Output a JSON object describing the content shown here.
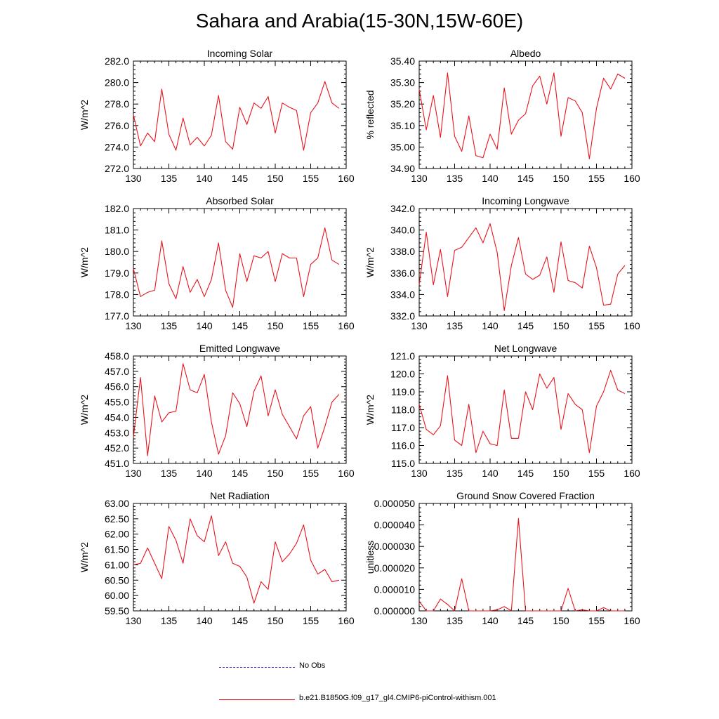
{
  "title": "Sahara and Arabia(15-30N,15W-60E)",
  "colors": {
    "model": "#e8141e",
    "obs": "#3b3bd6",
    "axis": "#000000"
  },
  "legend": [
    {
      "label": "No Obs",
      "style": "dashed",
      "color": "#3b3bd6"
    },
    {
      "label": "b.e21.B1850G.f09_g17_gl4.CMIP6-piControl-withism.001",
      "style": "solid",
      "color": "#e8141e"
    }
  ],
  "chart_data": [
    {
      "type": "line",
      "title": "Incoming Solar",
      "ylabel": "W/m^2",
      "xlim": [
        130,
        160
      ],
      "ylim": [
        272.0,
        282.0
      ],
      "xticks": [
        "130",
        "135",
        "140",
        "145",
        "150",
        "155",
        "160"
      ],
      "yticks": [
        "272.0",
        "274.0",
        "276.0",
        "278.0",
        "280.0",
        "282.0"
      ],
      "x": [
        130,
        131,
        132,
        133,
        134,
        135,
        136,
        137,
        138,
        139,
        140,
        141,
        142,
        143,
        144,
        145,
        146,
        147,
        148,
        149,
        150,
        151,
        152,
        153,
        154,
        155,
        156,
        157,
        158,
        159
      ],
      "series": [
        {
          "values": [
            277.0,
            274.1,
            275.3,
            274.5,
            279.4,
            275.2,
            273.7,
            276.7,
            274.2,
            274.9,
            274.1,
            275.1,
            278.8,
            274.5,
            273.8,
            277.7,
            276.1,
            278.1,
            277.6,
            278.7,
            275.3,
            278.1,
            277.7,
            277.4,
            273.7,
            277.2,
            278.1,
            280.1,
            278.1,
            277.6
          ]
        }
      ]
    },
    {
      "type": "line",
      "title": "Albedo",
      "ylabel": "% reflected",
      "xlim": [
        130,
        160
      ],
      "ylim": [
        34.9,
        35.4
      ],
      "xticks": [
        "130",
        "135",
        "140",
        "145",
        "150",
        "155",
        "160"
      ],
      "yticks": [
        "34.90",
        "35.00",
        "35.10",
        "35.20",
        "35.30",
        "35.40"
      ],
      "x": [
        130,
        131,
        132,
        133,
        134,
        135,
        136,
        137,
        138,
        139,
        140,
        141,
        142,
        143,
        144,
        145,
        146,
        147,
        148,
        149,
        150,
        151,
        152,
        153,
        154,
        155,
        156,
        157,
        158,
        159
      ],
      "series": [
        {
          "values": [
            35.27,
            35.08,
            35.24,
            35.045,
            35.345,
            35.05,
            34.98,
            35.145,
            34.96,
            34.95,
            35.06,
            34.99,
            35.275,
            35.06,
            35.125,
            35.155,
            35.285,
            35.33,
            35.2,
            35.345,
            35.05,
            35.23,
            35.215,
            35.16,
            34.945,
            35.18,
            35.32,
            35.27,
            35.34,
            35.32
          ]
        }
      ]
    },
    {
      "type": "line",
      "title": "Absorbed Solar",
      "ylabel": "W/m^2",
      "xlim": [
        130,
        160
      ],
      "ylim": [
        177.0,
        182.0
      ],
      "xticks": [
        "130",
        "135",
        "140",
        "145",
        "150",
        "155",
        "160"
      ],
      "yticks": [
        "177.0",
        "178.0",
        "179.0",
        "180.0",
        "181.0",
        "182.0"
      ],
      "x": [
        130,
        131,
        132,
        133,
        134,
        135,
        136,
        137,
        138,
        139,
        140,
        141,
        142,
        143,
        144,
        145,
        146,
        147,
        148,
        149,
        150,
        151,
        152,
        153,
        154,
        155,
        156,
        157,
        158,
        159
      ],
      "series": [
        {
          "values": [
            179.2,
            177.9,
            178.1,
            178.2,
            180.5,
            178.5,
            177.8,
            179.3,
            178.1,
            178.7,
            177.9,
            178.7,
            180.4,
            178.2,
            177.4,
            179.9,
            178.6,
            179.8,
            179.7,
            180.0,
            178.6,
            179.9,
            179.7,
            179.7,
            177.9,
            179.4,
            179.7,
            181.1,
            179.6,
            179.4
          ]
        }
      ]
    },
    {
      "type": "line",
      "title": "Incoming Longwave",
      "ylabel": "W/m^2",
      "xlim": [
        130,
        160
      ],
      "ylim": [
        332.0,
        342.0
      ],
      "xticks": [
        "130",
        "135",
        "140",
        "145",
        "150",
        "155",
        "160"
      ],
      "yticks": [
        "332.0",
        "334.0",
        "336.0",
        "338.0",
        "340.0",
        "342.0"
      ],
      "x": [
        130,
        131,
        132,
        133,
        134,
        135,
        136,
        137,
        138,
        139,
        140,
        141,
        142,
        143,
        144,
        145,
        146,
        147,
        148,
        149,
        150,
        151,
        152,
        153,
        154,
        155,
        156,
        157,
        158,
        159
      ],
      "series": [
        {
          "values": [
            334.9,
            339.8,
            334.9,
            338.2,
            333.8,
            338.1,
            338.4,
            339.3,
            340.2,
            338.8,
            340.6,
            337.9,
            332.5,
            336.7,
            339.3,
            335.9,
            335.4,
            335.8,
            337.5,
            334.2,
            338.9,
            335.3,
            335.1,
            334.6,
            338.5,
            336.5,
            333.0,
            333.1,
            335.9,
            336.7
          ]
        }
      ]
    },
    {
      "type": "line",
      "title": "Emitted Longwave",
      "ylabel": "W/m^2",
      "xlim": [
        130,
        160
      ],
      "ylim": [
        451.0,
        458.0
      ],
      "xticks": [
        "130",
        "135",
        "140",
        "145",
        "150",
        "155",
        "160"
      ],
      "yticks": [
        "451.0",
        "452.0",
        "453.0",
        "454.0",
        "455.0",
        "456.0",
        "457.0",
        "458.0"
      ],
      "x": [
        130,
        131,
        132,
        133,
        134,
        135,
        136,
        137,
        138,
        139,
        140,
        141,
        142,
        143,
        144,
        145,
        146,
        147,
        148,
        149,
        150,
        151,
        152,
        153,
        154,
        155,
        156,
        157,
        158,
        159
      ],
      "series": [
        {
          "values": [
            452.7,
            456.6,
            451.5,
            455.4,
            453.7,
            454.3,
            454.4,
            457.5,
            455.8,
            455.6,
            456.8,
            453.7,
            451.6,
            452.8,
            455.6,
            454.9,
            453.4,
            455.7,
            456.7,
            454.1,
            455.8,
            454.2,
            453.4,
            452.6,
            454.1,
            454.7,
            452.0,
            453.4,
            455.0,
            455.5
          ]
        }
      ]
    },
    {
      "type": "line",
      "title": "Net Longwave",
      "ylabel": "W/m^2",
      "xlim": [
        130,
        160
      ],
      "ylim": [
        115.0,
        121.0
      ],
      "xticks": [
        "130",
        "135",
        "140",
        "145",
        "150",
        "155",
        "160"
      ],
      "yticks": [
        "115.0",
        "116.0",
        "117.0",
        "118.0",
        "119.0",
        "120.0",
        "121.0"
      ],
      "x": [
        130,
        131,
        132,
        133,
        134,
        135,
        136,
        137,
        138,
        139,
        140,
        141,
        142,
        143,
        144,
        145,
        146,
        147,
        148,
        149,
        150,
        151,
        152,
        153,
        154,
        155,
        156,
        157,
        158,
        159
      ],
      "series": [
        {
          "values": [
            118.3,
            116.9,
            116.6,
            117.1,
            119.9,
            116.3,
            116.0,
            118.3,
            115.6,
            116.8,
            116.1,
            116.0,
            119.1,
            116.4,
            116.4,
            119.0,
            118.0,
            120.0,
            119.2,
            119.8,
            116.9,
            118.9,
            118.3,
            118.0,
            115.6,
            118.2,
            119.0,
            120.2,
            119.1,
            118.9
          ]
        }
      ]
    },
    {
      "type": "line",
      "title": "Net Radiation",
      "ylabel": "W/m^2",
      "xlim": [
        130,
        160
      ],
      "ylim": [
        59.5,
        63.0
      ],
      "xticks": [
        "130",
        "135",
        "140",
        "145",
        "150",
        "155",
        "160"
      ],
      "yticks": [
        "59.50",
        "60.00",
        "60.50",
        "61.00",
        "61.50",
        "62.00",
        "62.50",
        "63.00"
      ],
      "x": [
        130,
        131,
        132,
        133,
        134,
        135,
        136,
        137,
        138,
        139,
        140,
        141,
        142,
        143,
        144,
        145,
        146,
        147,
        148,
        149,
        150,
        151,
        152,
        153,
        154,
        155,
        156,
        157,
        158,
        159
      ],
      "series": [
        {
          "values": [
            61.0,
            61.05,
            61.55,
            61.05,
            60.55,
            62.25,
            61.8,
            61.05,
            62.5,
            61.95,
            61.75,
            62.6,
            61.3,
            61.75,
            61.05,
            60.95,
            60.6,
            59.75,
            60.45,
            60.2,
            61.75,
            61.1,
            61.35,
            61.7,
            62.3,
            61.15,
            60.7,
            60.85,
            60.45,
            60.5
          ]
        }
      ]
    },
    {
      "type": "line",
      "title": "Ground Snow Covered Fraction",
      "ylabel": "unitless",
      "xlim": [
        130,
        160
      ],
      "ylim": [
        0.0,
        5e-05
      ],
      "xticks": [
        "130",
        "135",
        "140",
        "145",
        "150",
        "155",
        "160"
      ],
      "yticks": [
        "0.000000",
        "0.000010",
        "0.000020",
        "0.000030",
        "0.000040",
        "0.000050"
      ],
      "x": [
        130,
        131,
        132,
        133,
        134,
        135,
        136,
        137,
        138,
        139,
        140,
        141,
        142,
        143,
        144,
        145,
        146,
        147,
        148,
        149,
        150,
        151,
        152,
        153,
        154,
        155,
        156,
        157,
        158,
        159
      ],
      "series": [
        {
          "values": [
            4.5e-06,
            0.0,
            0.0,
            5.5e-06,
            3e-06,
            0.0,
            1.5e-05,
            0.0,
            0.0,
            0.0,
            0.0,
            5e-07,
            2e-06,
            0.0,
            4.3e-05,
            0.0,
            0.0,
            0.0,
            0.0,
            0.0,
            0.0,
            1.05e-05,
            0.0,
            5e-07,
            0.0,
            0.0,
            1.5e-06,
            0.0,
            0.0,
            0.0
          ]
        }
      ]
    }
  ]
}
